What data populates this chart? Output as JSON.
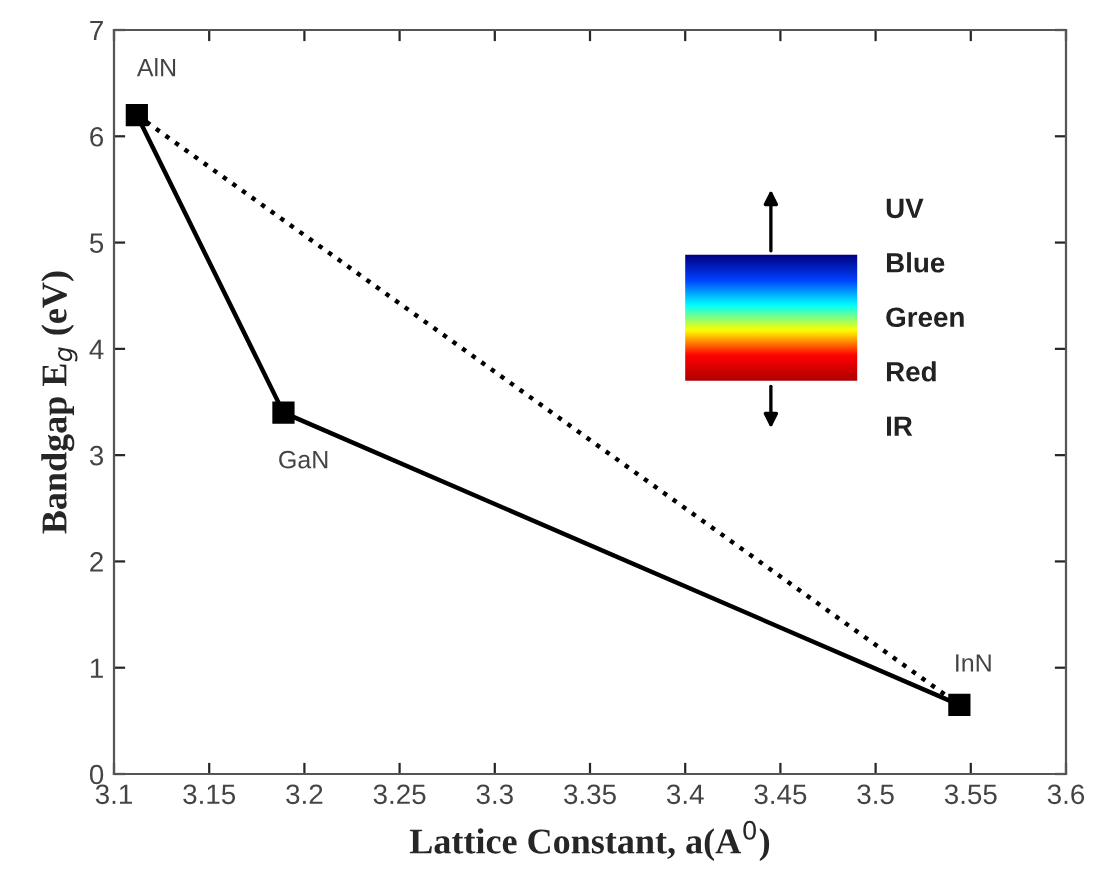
{
  "chart_data": {
    "type": "line",
    "xlabel": "Lattice Constant, a(A$^{0}$)",
    "ylabel": "Bandgap E$_{g}$ (eV)",
    "series": [
      {
        "color": "#000000",
        "marker": "square",
        "line_style": "solid",
        "x": [
          3.112,
          3.189,
          3.544
        ],
        "values": [
          6.2,
          3.4,
          0.65
        ]
      },
      {
        "color": "#000000",
        "marker": "none",
        "line_style": "dotted",
        "x": [
          3.112,
          3.544
        ],
        "values": [
          6.2,
          0.65
        ]
      }
    ],
    "xlim": [
      3.1,
      3.6
    ],
    "ylim": [
      0,
      7
    ],
    "xticks": [
      3.1,
      3.15,
      3.2,
      3.25,
      3.3,
      3.35,
      3.4,
      3.45,
      3.5,
      3.55,
      3.6
    ],
    "yticks": [
      0,
      1,
      2,
      3,
      4,
      5,
      6,
      7
    ],
    "grid": false,
    "legend": false,
    "annotations": [
      {
        "text": "AlN",
        "x": 3.112,
        "y": 6.2
      },
      {
        "text": "GaN",
        "x": 3.189,
        "y": 3.4
      },
      {
        "text": "InN",
        "x": 3.544,
        "y": 0.65
      },
      "UV",
      "Blue",
      "Green",
      "Red",
      "IR"
    ]
  }
}
